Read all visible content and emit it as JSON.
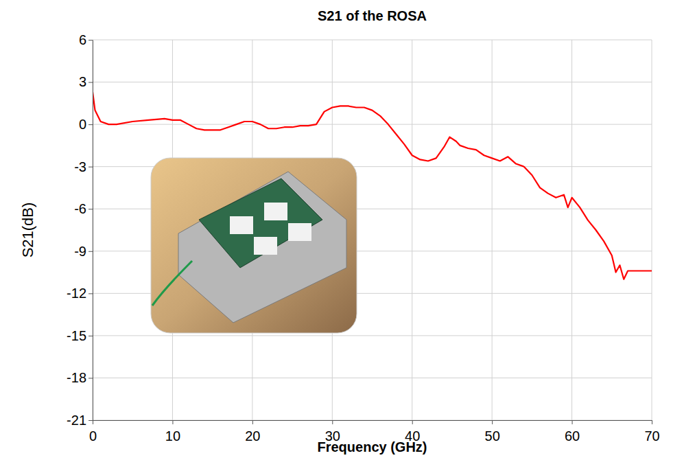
{
  "chart_data": {
    "type": "line",
    "title": "S21 of the ROSA",
    "x_label": "Frequency (GHz)",
    "y_label": "S21(dB)",
    "x": [
      0,
      0.3,
      1,
      2,
      3,
      5,
      7,
      9,
      10,
      11,
      12,
      13,
      14,
      15,
      16,
      17,
      18,
      19,
      20,
      21,
      22,
      23,
      24,
      25,
      26,
      27,
      28,
      29,
      30,
      31,
      32,
      33,
      34,
      35,
      36,
      37,
      38,
      39,
      40,
      41,
      42,
      43,
      44,
      44.7,
      45.5,
      46,
      47,
      48,
      49,
      50,
      51,
      52,
      53,
      54,
      55,
      56,
      57,
      58,
      59,
      59.5,
      60,
      61,
      62,
      63,
      64,
      65,
      65.5,
      66,
      66.5,
      67,
      70
    ],
    "values": [
      2.3,
      1.0,
      0.2,
      0.0,
      0.0,
      0.2,
      0.3,
      0.4,
      0.3,
      0.3,
      0.0,
      -0.3,
      -0.4,
      -0.4,
      -0.4,
      -0.2,
      0.0,
      0.2,
      0.2,
      0.0,
      -0.3,
      -0.3,
      -0.2,
      -0.2,
      -0.1,
      -0.1,
      0.0,
      0.9,
      1.2,
      1.3,
      1.3,
      1.2,
      1.2,
      1.0,
      0.6,
      0.0,
      -0.7,
      -1.4,
      -2.2,
      -2.5,
      -2.6,
      -2.4,
      -1.6,
      -0.9,
      -1.2,
      -1.5,
      -1.7,
      -1.8,
      -2.2,
      -2.4,
      -2.6,
      -2.3,
      -2.8,
      -3.0,
      -3.6,
      -4.5,
      -4.9,
      -5.2,
      -5.0,
      -5.9,
      -5.2,
      -5.9,
      -6.8,
      -7.5,
      -8.3,
      -9.3,
      -10.5,
      -10.0,
      -11.0,
      -10.4,
      -10.4
    ],
    "color": "#ff0000",
    "xlim": [
      0,
      70
    ],
    "xticks": [
      0,
      10,
      20,
      30,
      40,
      50,
      60,
      70
    ],
    "ylim": [
      -21,
      6
    ],
    "yticks": [
      -21,
      -18,
      -15,
      -12,
      -9,
      -6,
      -3,
      0,
      3,
      6
    ],
    "grid": true
  }
}
